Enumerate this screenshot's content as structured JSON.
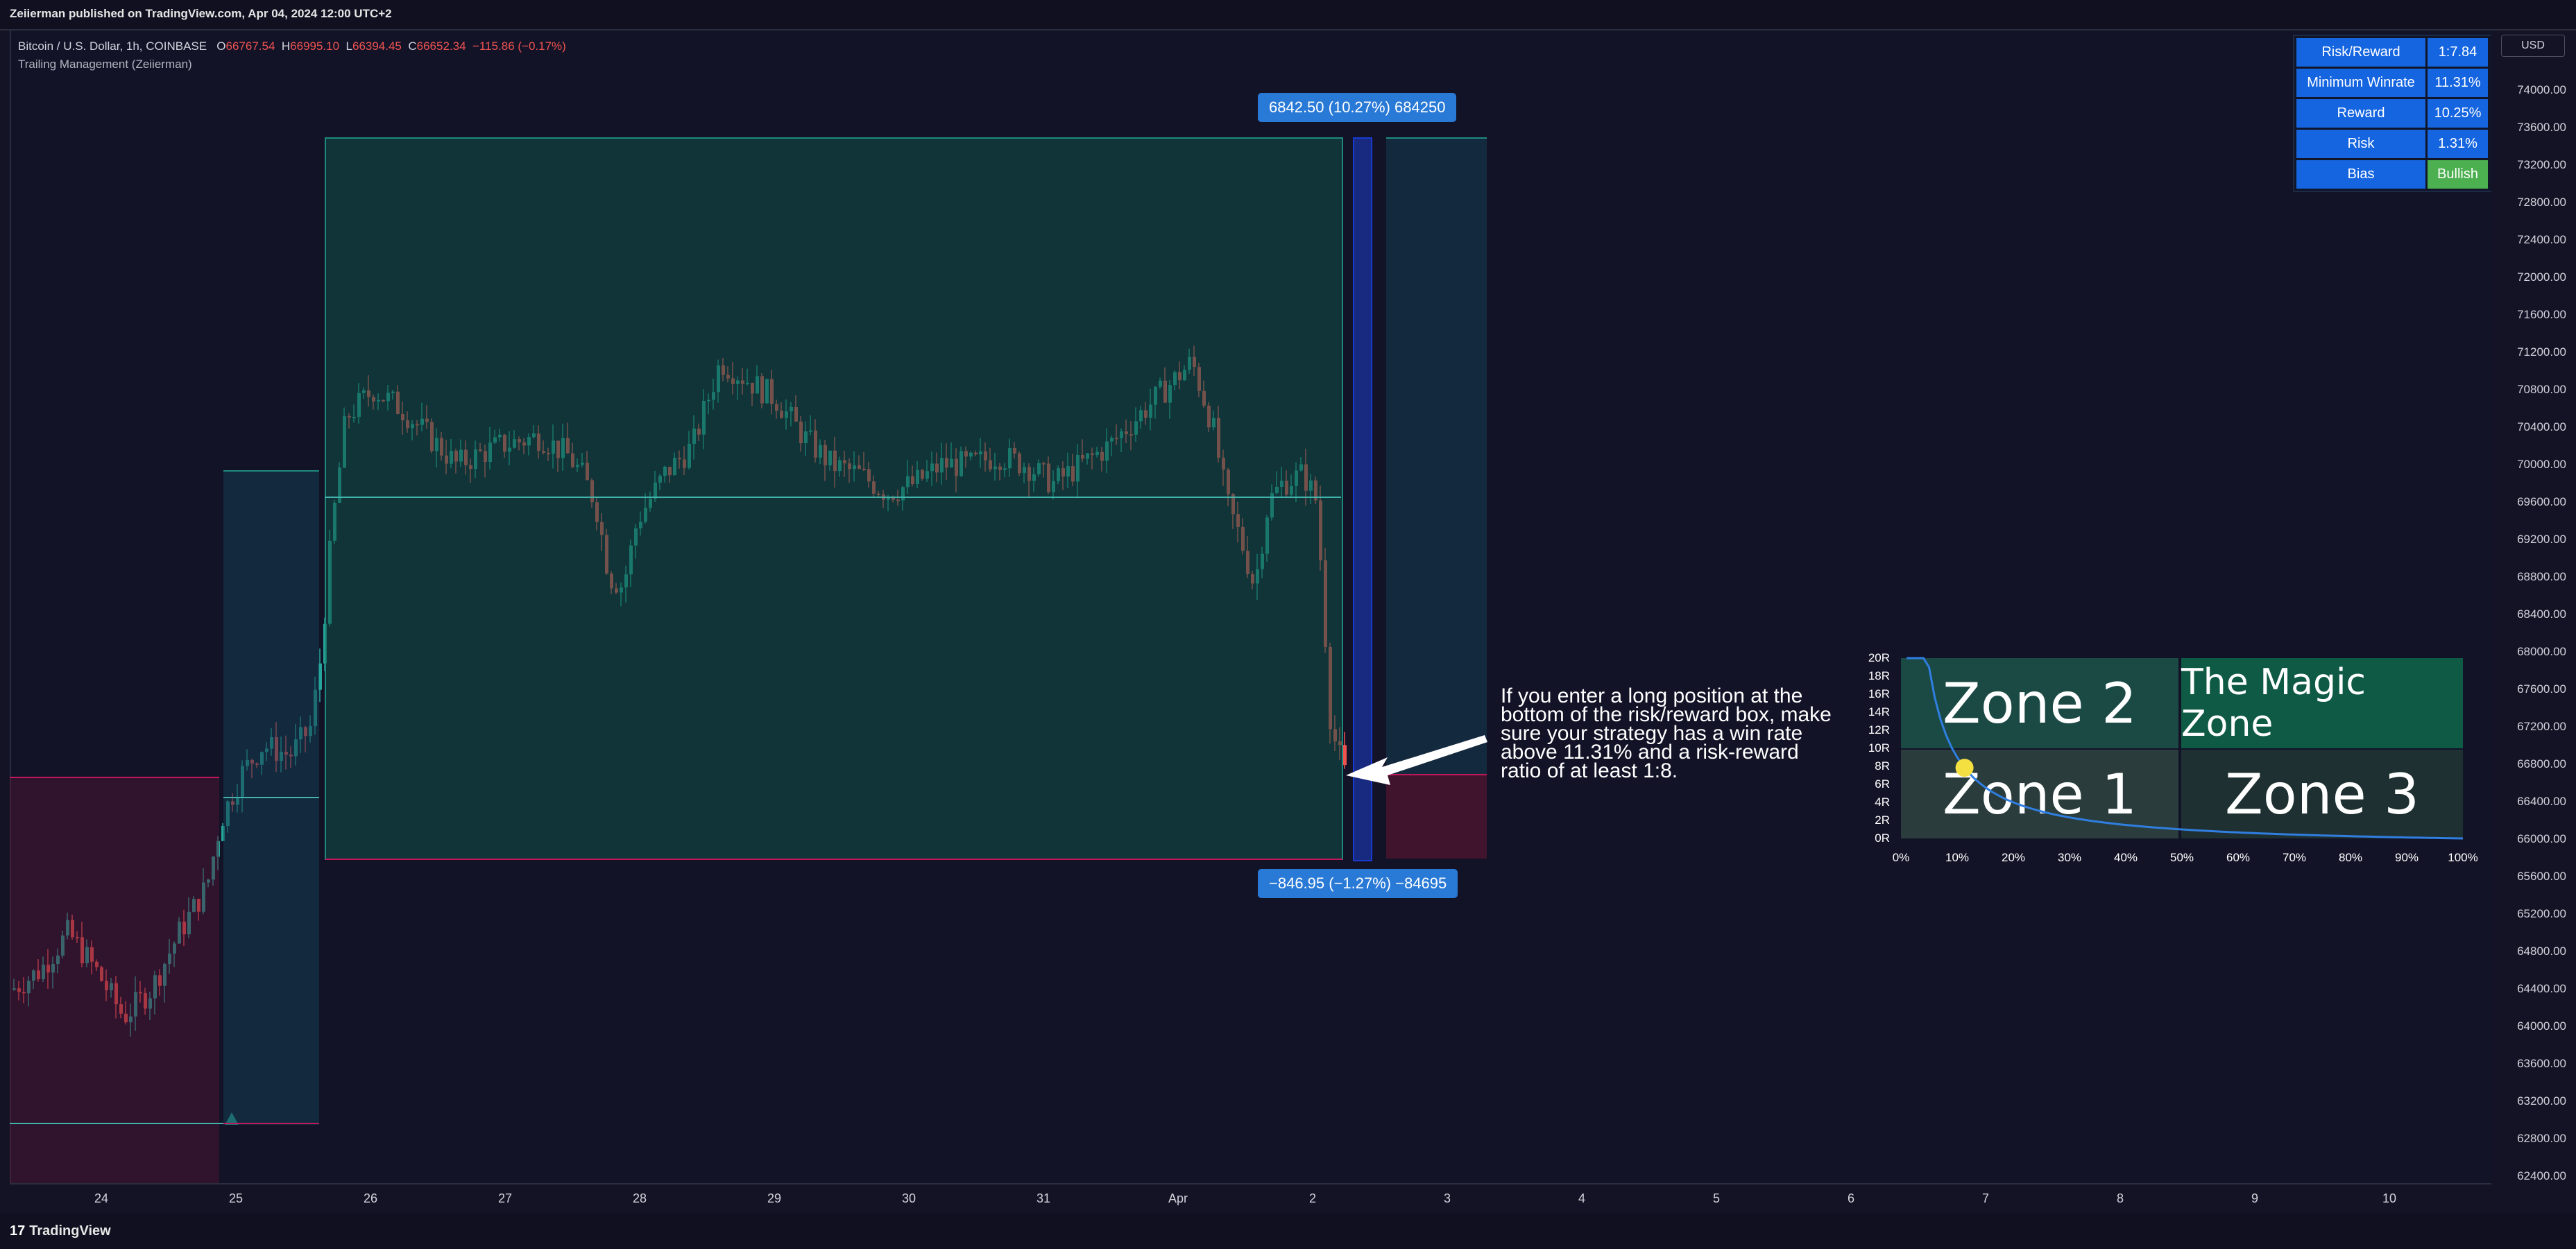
{
  "header": {
    "published": "Zeiierman published on TradingView.com, Apr 04, 2024 12:00 UTC+2"
  },
  "legend": {
    "symbol": "Bitcoin / U.S. Dollar, 1h, COINBASE",
    "open_label": "O",
    "open": "66767.54",
    "high_label": "H",
    "high": "66995.10",
    "low_label": "L",
    "low": "66394.45",
    "close_label": "C",
    "close": "66652.34",
    "change": "−115.86 (−0.17%)",
    "indicator": "Trailing Management (Zeiierman)"
  },
  "colors": {
    "background": "#131328",
    "up_candle": "#26a69a",
    "down_candle": "#ef5350",
    "tag_blue": "#2979d6",
    "table_blue": "#1565e0",
    "bullish_green": "#4caf50"
  },
  "price_axis": {
    "currency": "USD",
    "labels": [
      "74000.00",
      "73600.00",
      "73200.00",
      "72800.00",
      "72400.00",
      "72000.00",
      "71600.00",
      "71200.00",
      "70800.00",
      "70400.00",
      "70000.00",
      "69600.00",
      "69200.00",
      "68800.00",
      "68400.00",
      "68000.00",
      "67600.00",
      "67200.00",
      "66800.00",
      "66400.00",
      "66000.00",
      "65600.00",
      "65200.00",
      "64800.00",
      "64400.00",
      "64000.00",
      "63600.00",
      "63200.00",
      "62800.00",
      "62400.00"
    ]
  },
  "time_axis": {
    "labels": [
      "24",
      "25",
      "26",
      "27",
      "28",
      "29",
      "30",
      "31",
      "Apr",
      "2",
      "3",
      "4",
      "5",
      "6",
      "7",
      "8",
      "9",
      "10"
    ]
  },
  "tags": {
    "target": "6842.50 (10.27%) 684250",
    "stop": "−846.95 (−1.27%) −84695"
  },
  "annotation": {
    "text": "If you enter a long position at the bottom of the risk/reward box, make sure your strategy has a win rate above 11.31% and a risk-reward ratio of at least 1:8."
  },
  "info_table": {
    "rows": [
      {
        "key": "Risk/Reward",
        "value": "1:7.84"
      },
      {
        "key": "Minimum Winrate",
        "value": "11.31%"
      },
      {
        "key": "Reward",
        "value": "10.25%"
      },
      {
        "key": "Risk",
        "value": "1.31%"
      },
      {
        "key": "Bias",
        "value": "Bullish"
      }
    ]
  },
  "zone_panel": {
    "zones": {
      "zone2": "Zone 2",
      "magic": "The Magic Zone",
      "zone1": "Zone 1",
      "zone3": "Zone 3"
    },
    "y_labels": [
      "20R",
      "18R",
      "16R",
      "14R",
      "12R",
      "10R",
      "8R",
      "6R",
      "4R",
      "2R",
      "0R"
    ],
    "x_labels": [
      "0%",
      "10%",
      "20%",
      "30%",
      "40%",
      "50%",
      "60%",
      "70%",
      "80%",
      "90%",
      "100%"
    ],
    "marker": {
      "winrate_pct": 11.31,
      "rr": 7.84
    }
  },
  "footer": {
    "brand": "TradingView"
  }
}
